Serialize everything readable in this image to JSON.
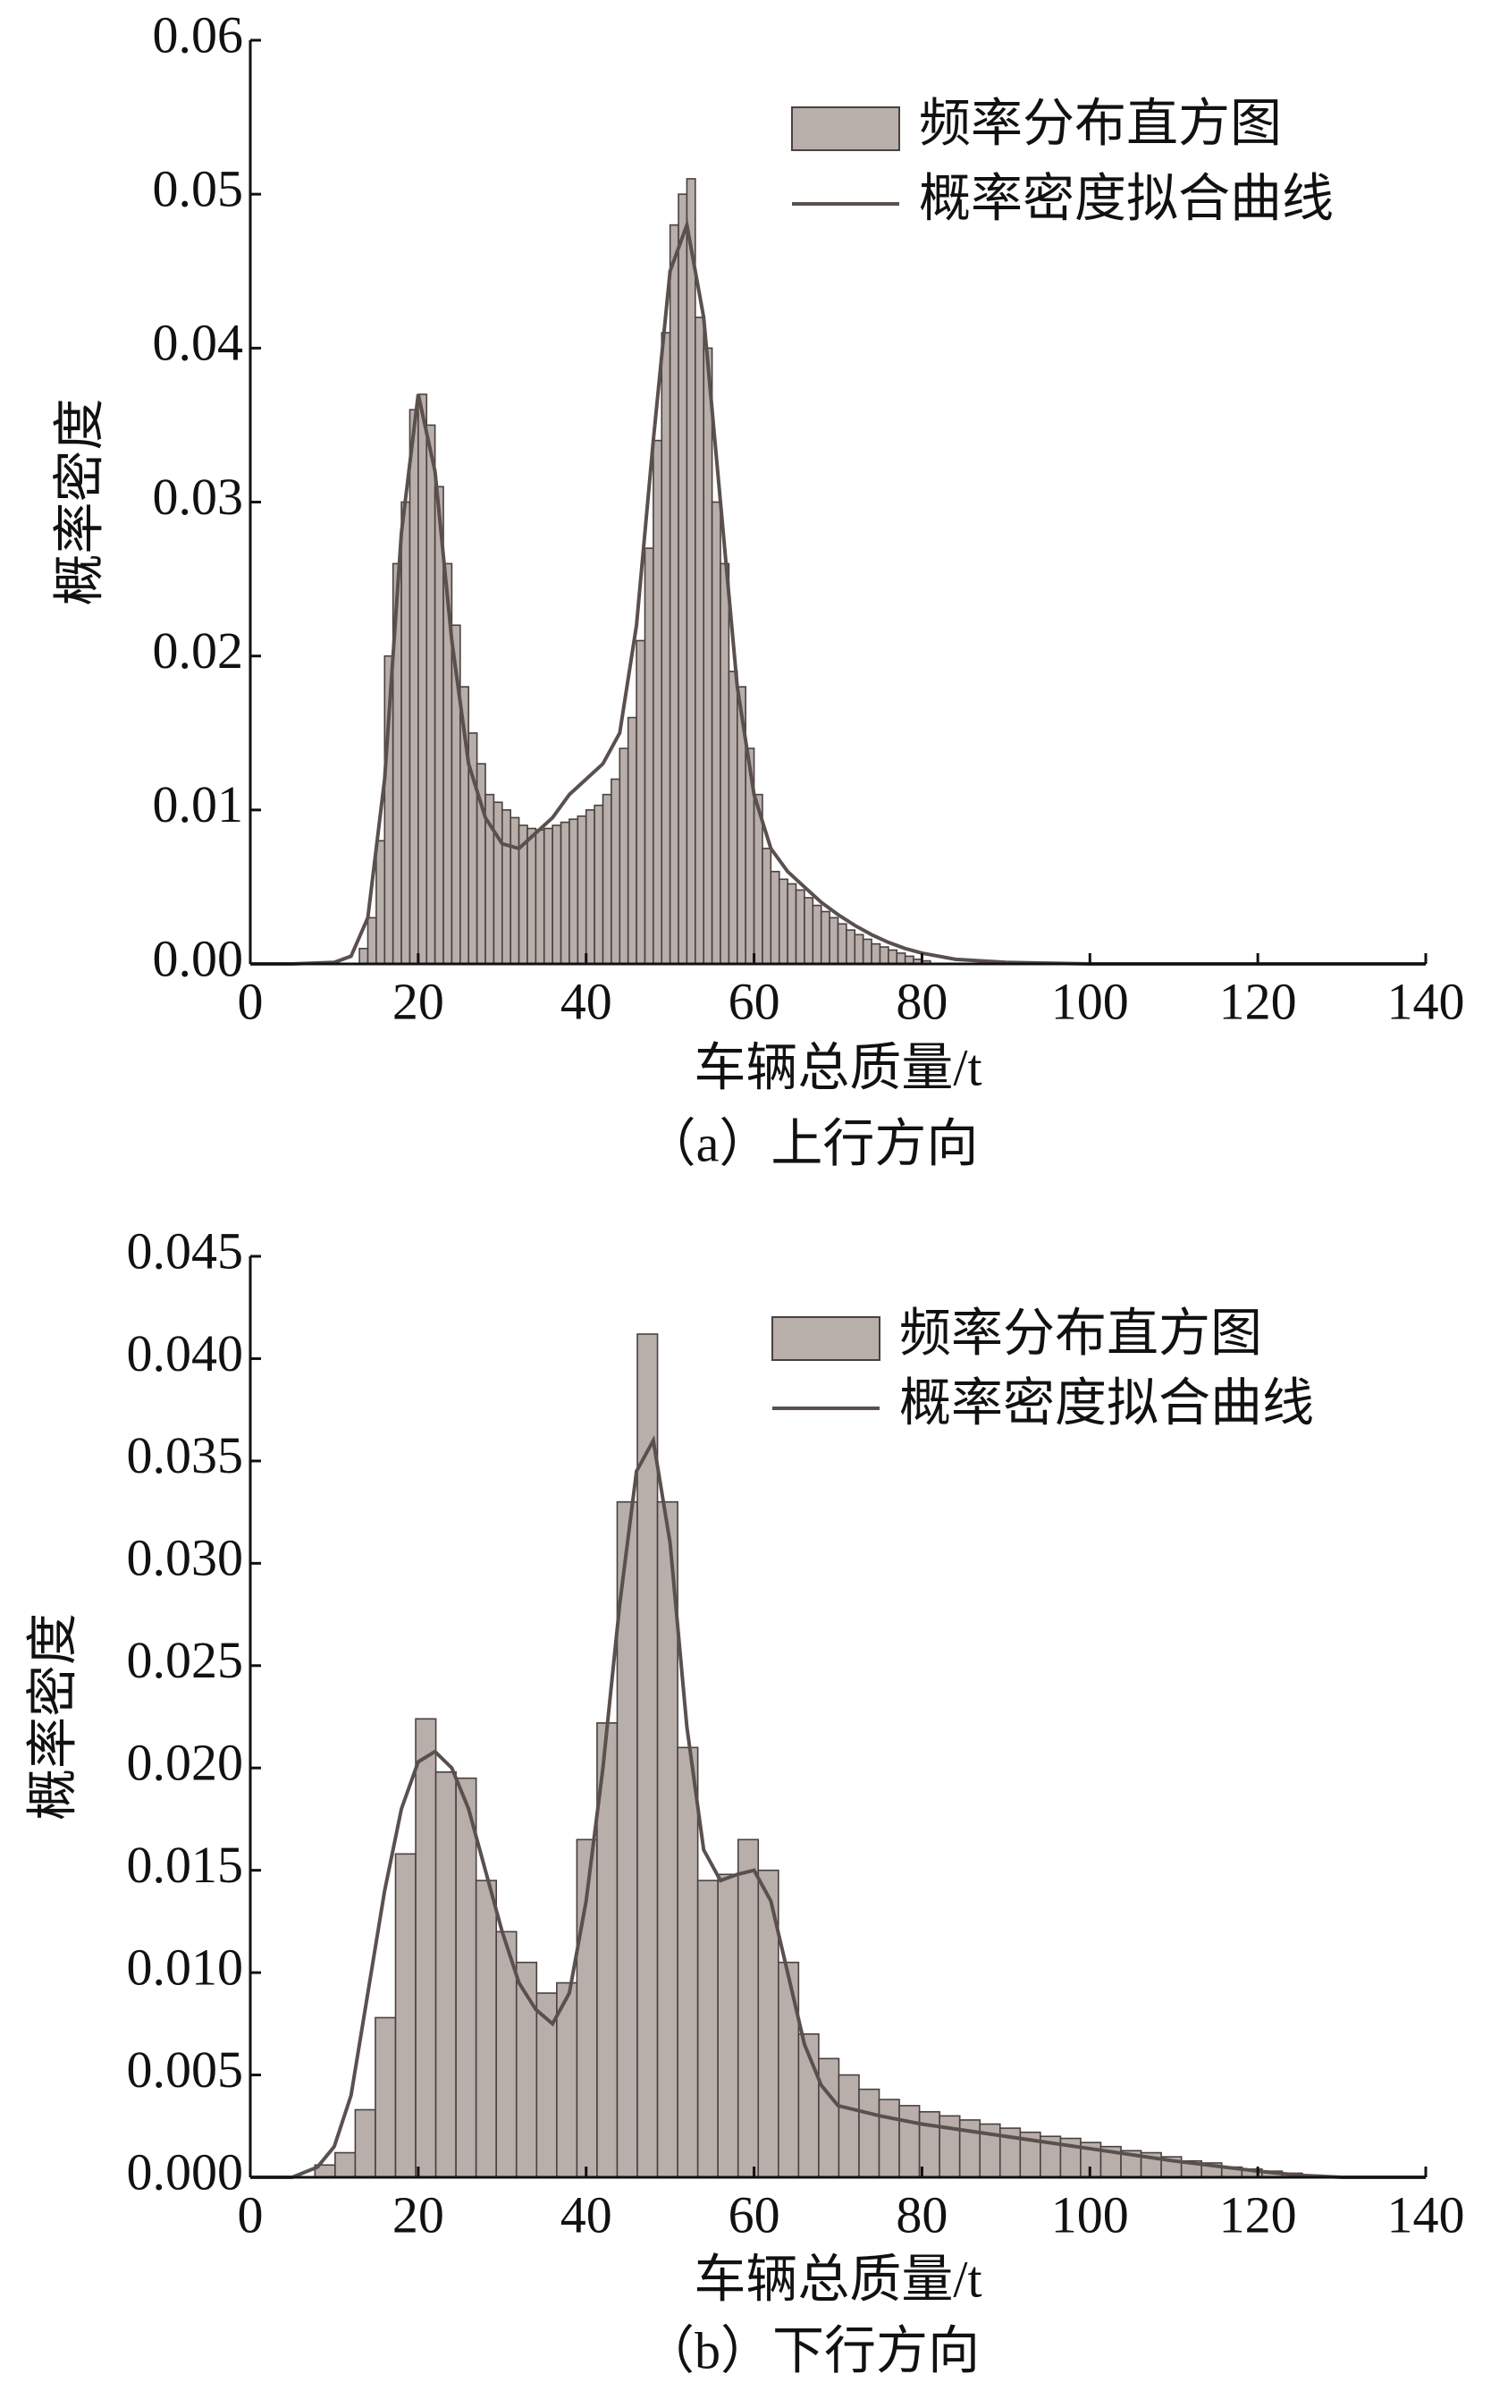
{
  "chart_data": [
    {
      "type": "histogram",
      "caption": "（a）上行方向",
      "xlabel": "车辆总质量/t",
      "ylabel": "概率密度",
      "hist_name": "频率分布直方图",
      "color": "#b8aeaa",
      "bins": [
        13,
        14,
        15,
        16,
        17,
        18,
        19,
        20,
        21,
        22,
        23,
        24,
        25,
        26,
        27,
        28,
        29,
        30,
        31,
        32,
        33,
        34,
        35,
        36,
        37,
        38,
        39,
        40,
        41,
        42,
        43,
        44,
        45,
        46,
        47,
        48,
        49,
        50,
        51,
        52,
        53,
        54,
        55,
        56,
        57,
        58,
        59,
        60,
        61,
        62,
        63,
        64,
        65,
        66,
        67,
        68,
        69,
        70,
        71,
        72,
        73,
        74,
        75,
        76,
        77,
        78,
        79,
        80,
        81
      ],
      "values": [
        0.001,
        0.003,
        0.008,
        0.02,
        0.026,
        0.03,
        0.036,
        0.037,
        0.035,
        0.031,
        0.026,
        0.022,
        0.018,
        0.015,
        0.013,
        0.011,
        0.0105,
        0.01,
        0.0095,
        0.009,
        0.0088,
        0.0087,
        0.0088,
        0.009,
        0.0092,
        0.0094,
        0.0096,
        0.01,
        0.0103,
        0.011,
        0.012,
        0.014,
        0.016,
        0.021,
        0.027,
        0.034,
        0.041,
        0.048,
        0.05,
        0.051,
        0.042,
        0.04,
        0.03,
        0.026,
        0.019,
        0.018,
        0.014,
        0.011,
        0.0075,
        0.006,
        0.0055,
        0.0052,
        0.0048,
        0.0043,
        0.0038,
        0.0034,
        0.003,
        0.0026,
        0.0022,
        0.0019,
        0.0016,
        0.0013,
        0.0011,
        0.0009,
        0.0007,
        0.0005,
        0.0003,
        0.0002
      ],
      "curve": {
        "name": "概率密度拟合曲线",
        "color": "#5a504e",
        "x": [
          0,
          5,
          10,
          12,
          14,
          16,
          18,
          20,
          22,
          24,
          26,
          28,
          30,
          32,
          34,
          36,
          38,
          40,
          42,
          44,
          46,
          48,
          50,
          52,
          54,
          56,
          58,
          60,
          62,
          64,
          66,
          68,
          70,
          72,
          74,
          76,
          78,
          80,
          84,
          90,
          100,
          140
        ],
        "y": [
          0,
          0,
          0.0001,
          0.0005,
          0.003,
          0.012,
          0.028,
          0.037,
          0.032,
          0.021,
          0.013,
          0.0095,
          0.0078,
          0.0075,
          0.0085,
          0.0095,
          0.011,
          0.012,
          0.013,
          0.015,
          0.022,
          0.034,
          0.045,
          0.048,
          0.042,
          0.03,
          0.018,
          0.011,
          0.0075,
          0.006,
          0.005,
          0.004,
          0.0032,
          0.0025,
          0.0019,
          0.0014,
          0.001,
          0.0007,
          0.0003,
          0.0001,
          0,
          0
        ]
      },
      "xlim": [
        0,
        140
      ],
      "xticks": [
        0,
        20,
        40,
        60,
        80,
        100,
        120,
        140
      ],
      "ylim": [
        0,
        0.06
      ],
      "yticks": [
        {
          "value": 0,
          "label": "0.00"
        },
        0.01,
        0.02,
        0.03,
        0.04,
        0.05,
        0.06
      ]
    },
    {
      "type": "histogram",
      "caption": "（b）下行方向",
      "xlabel": "车辆总质量/t",
      "ylabel": "概率密度",
      "hist_name": "频率分布直方图",
      "color": "#b8aeaa",
      "bins": [
        7.7,
        10.1,
        12.5,
        14.9,
        17.3,
        19.7,
        22.1,
        24.5,
        26.9,
        29.3,
        31.7,
        34.1,
        36.5,
        38.9,
        41.3,
        43.7,
        46.1,
        48.5,
        50.9,
        53.3,
        55.7,
        58.1,
        60.5,
        62.9,
        65.3,
        67.7,
        70.1,
        72.5,
        74.9,
        77.3,
        79.7,
        82.1,
        84.5,
        86.9,
        89.3,
        91.7,
        94.1,
        96.5,
        98.9,
        101.3,
        103.7,
        106.1,
        108.5,
        110.9,
        113.3,
        115.7,
        118.1,
        120.5,
        122.9,
        125.3,
        127.7
      ],
      "values": [
        0.0006,
        0.0012,
        0.0033,
        0.0078,
        0.0158,
        0.0224,
        0.0198,
        0.0195,
        0.0145,
        0.012,
        0.0105,
        0.009,
        0.0095,
        0.0165,
        0.0222,
        0.033,
        0.0412,
        0.033,
        0.021,
        0.0145,
        0.0148,
        0.0165,
        0.015,
        0.0105,
        0.007,
        0.0058,
        0.005,
        0.0043,
        0.0038,
        0.0035,
        0.0032,
        0.003,
        0.0028,
        0.0026,
        0.0024,
        0.0022,
        0.002,
        0.0019,
        0.0017,
        0.0015,
        0.0013,
        0.0012,
        0.001,
        0.0008,
        0.0007,
        0.0005,
        0.0004,
        0.0003,
        0.0002,
        0.0001
      ],
      "curve": {
        "name": "概率密度拟合曲线",
        "color": "#5a504e",
        "x": [
          0,
          5,
          8,
          10,
          12,
          14,
          16,
          18,
          20,
          22,
          24,
          26,
          28,
          30,
          32,
          34,
          36,
          38,
          40,
          42,
          44,
          46,
          48,
          50,
          52,
          54,
          56,
          58,
          60,
          62,
          64,
          66,
          68,
          70,
          75,
          80,
          90,
          100,
          110,
          120,
          125,
          130,
          140
        ],
        "y": [
          0,
          0,
          0.0005,
          0.0015,
          0.004,
          0.009,
          0.014,
          0.018,
          0.0203,
          0.0208,
          0.02,
          0.018,
          0.015,
          0.012,
          0.0095,
          0.0082,
          0.0075,
          0.009,
          0.0135,
          0.02,
          0.028,
          0.0345,
          0.036,
          0.031,
          0.022,
          0.016,
          0.0145,
          0.0148,
          0.015,
          0.0135,
          0.01,
          0.0065,
          0.0045,
          0.0035,
          0.003,
          0.0026,
          0.002,
          0.0014,
          0.0008,
          0.0003,
          0.0001,
          0,
          0
        ]
      },
      "xlim": [
        0,
        140
      ],
      "xticks": [
        0,
        20,
        40,
        60,
        80,
        100,
        120,
        140
      ],
      "ylim": [
        0,
        0.045
      ],
      "yticks": [
        {
          "value": 0,
          "label": "0.000"
        },
        0.005,
        {
          "value": 0.01,
          "label": "0.010"
        },
        0.015,
        {
          "value": 0.02,
          "label": "0.020"
        },
        0.025,
        {
          "value": 0.03,
          "label": "0.030"
        },
        0.035,
        {
          "value": 0.04,
          "label": "0.040"
        },
        0.045
      ]
    }
  ]
}
